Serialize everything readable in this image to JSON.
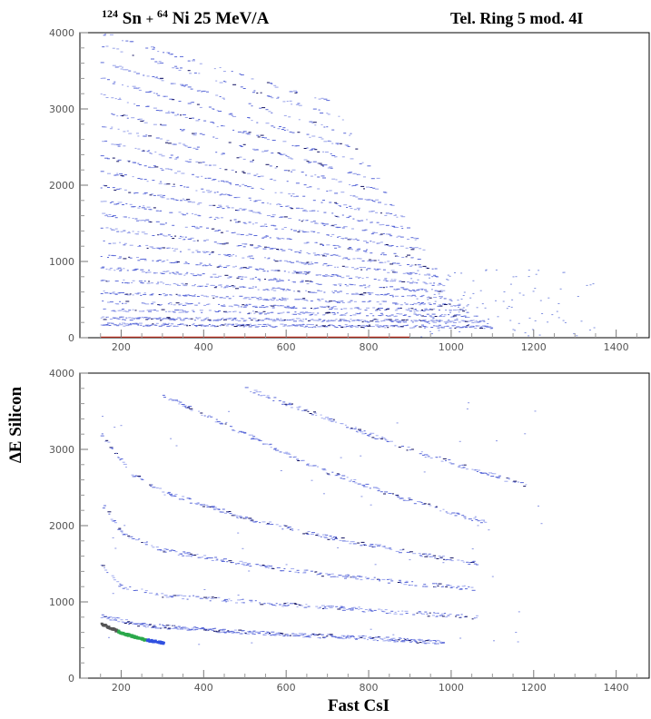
{
  "figure": {
    "title_left": {
      "sup1": "124",
      "el1": "Sn",
      "plus": " + ",
      "sup2": "64",
      "el2": "Ni 25 MeV/A"
    },
    "title_right": "Tel. Ring 5 mod. 4I"
  },
  "chart_data": [
    {
      "type": "scatter",
      "panel": "top",
      "xlim": [
        100,
        1480
      ],
      "ylim": [
        0,
        4000
      ],
      "xticks": [
        200,
        400,
        600,
        800,
        1000,
        1200,
        1400
      ],
      "yticks": [
        0,
        1000,
        2000,
        3000,
        4000
      ],
      "grid": false,
      "xlabel": "",
      "ylabel": "",
      "bands": [
        {
          "y0": 180,
          "y1": 150,
          "xmax": 1100
        },
        {
          "y0": 260,
          "y1": 220,
          "xmax": 1080
        },
        {
          "y0": 370,
          "y1": 290,
          "xmax": 1060
        },
        {
          "y0": 470,
          "y1": 360,
          "xmax": 1040
        },
        {
          "y0": 600,
          "y1": 430,
          "xmax": 1020
        },
        {
          "y0": 760,
          "y1": 520,
          "xmax": 1000
        },
        {
          "y0": 920,
          "y1": 600,
          "xmax": 990
        },
        {
          "y0": 1080,
          "y1": 690,
          "xmax": 980
        },
        {
          "y0": 1260,
          "y1": 790,
          "xmax": 970
        },
        {
          "y0": 1440,
          "y1": 890,
          "xmax": 960
        },
        {
          "y0": 1620,
          "y1": 990,
          "xmax": 950
        },
        {
          "y0": 1800,
          "y1": 1100,
          "xmax": 940
        },
        {
          "y0": 1990,
          "y1": 1210,
          "xmax": 920
        },
        {
          "y0": 2180,
          "y1": 1330,
          "xmax": 900
        },
        {
          "y0": 2380,
          "y1": 1450,
          "xmax": 880
        },
        {
          "y0": 2580,
          "y1": 1580,
          "xmax": 860
        },
        {
          "y0": 2780,
          "y1": 1710,
          "xmax": 840
        },
        {
          "y0": 2980,
          "y1": 1850,
          "xmax": 820
        },
        {
          "y0": 3190,
          "y1": 1990,
          "xmax": 800
        },
        {
          "y0": 3400,
          "y1": 2140,
          "xmax": 780
        },
        {
          "y0": 3620,
          "y1": 2290,
          "xmax": 760
        },
        {
          "y0": 3840,
          "y1": 2450,
          "xmax": 740
        },
        {
          "y0": 4000,
          "y1": 2610,
          "xmax": 720
        }
      ]
    },
    {
      "type": "scatter",
      "panel": "bottom",
      "xlim": [
        100,
        1480
      ],
      "ylim": [
        0,
        4000
      ],
      "xticks": [
        200,
        400,
        600,
        800,
        1000,
        1200,
        1400
      ],
      "yticks": [
        0,
        1000,
        2000,
        3000,
        4000
      ],
      "grid": false,
      "xlabel": "Fast CsI",
      "ylabel": "ΔE Silicon",
      "lines": [
        {
          "points": [
            [
              150,
              720
            ],
            [
              200,
              600
            ],
            [
              250,
              520
            ],
            [
              300,
              470
            ]
          ],
          "colors": [
            "#555555",
            "#2aa84a",
            "#3050e0"
          ]
        },
        {
          "points": [
            [
              150,
              820
            ],
            [
              250,
              700
            ],
            [
              400,
              640
            ],
            [
              600,
              580
            ],
            [
              800,
              530
            ],
            [
              980,
              470
            ]
          ]
        },
        {
          "points": [
            [
              150,
              1480
            ],
            [
              200,
              1200
            ],
            [
              300,
              1090
            ],
            [
              500,
              1010
            ],
            [
              700,
              930
            ],
            [
              900,
              860
            ],
            [
              1060,
              800
            ]
          ]
        },
        {
          "points": [
            [
              150,
              2300
            ],
            [
              200,
              1900
            ],
            [
              300,
              1680
            ],
            [
              500,
              1500
            ],
            [
              700,
              1360
            ],
            [
              900,
              1250
            ],
            [
              1050,
              1180
            ]
          ]
        },
        {
          "points": [
            [
              150,
              3200
            ],
            [
              220,
              2700
            ],
            [
              300,
              2440
            ],
            [
              500,
              2100
            ],
            [
              700,
              1850
            ],
            [
              900,
              1650
            ],
            [
              1070,
              1500
            ]
          ]
        },
        {
          "points": [
            [
              300,
              3700
            ],
            [
              500,
              3200
            ],
            [
              700,
              2700
            ],
            [
              900,
              2330
            ],
            [
              1080,
              2050
            ]
          ]
        },
        {
          "points": [
            [
              500,
              3800
            ],
            [
              700,
              3400
            ],
            [
              900,
              3000
            ],
            [
              1100,
              2660
            ],
            [
              1180,
              2530
            ]
          ]
        }
      ]
    }
  ]
}
